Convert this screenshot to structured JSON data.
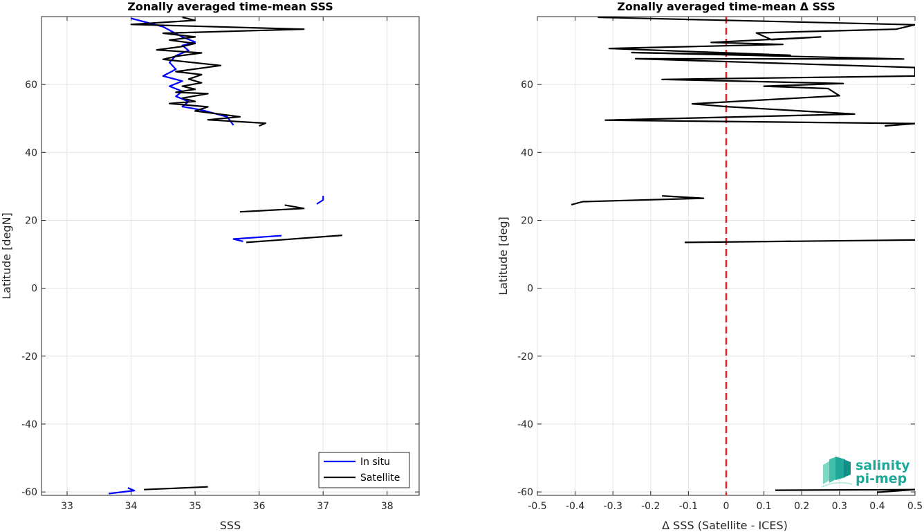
{
  "chart_data": [
    {
      "type": "line",
      "title": "Zonally averaged time-mean SSS",
      "xlabel": "SSS",
      "ylabel": "Latitude [degN]",
      "xlim": [
        32.6,
        38.5
      ],
      "ylim": [
        -61,
        80
      ],
      "xticks": [
        33,
        34,
        35,
        36,
        37,
        38
      ],
      "yticks": [
        -60,
        -40,
        -20,
        0,
        20,
        40,
        60
      ],
      "grid": true,
      "legend_position": "bottom-right",
      "series": [
        {
          "name": "In situ",
          "color": "#0000ff",
          "segments": [
            [
              [
                34.0,
                79.5
              ],
              [
                34.5,
                77.0
              ],
              [
                34.8,
                74.0
              ],
              [
                35.0,
                72.5
              ],
              [
                34.8,
                71.5
              ],
              [
                34.9,
                70.0
              ],
              [
                34.7,
                68.5
              ],
              [
                34.6,
                66.5
              ],
              [
                34.7,
                64.5
              ],
              [
                34.5,
                62.5
              ],
              [
                34.8,
                61.0
              ],
              [
                34.6,
                59.5
              ],
              [
                34.8,
                58.0
              ],
              [
                34.7,
                56.5
              ],
              [
                34.9,
                55.0
              ],
              [
                34.8,
                53.5
              ],
              [
                35.1,
                52.5
              ],
              [
                35.5,
                50.5
              ],
              [
                35.6,
                48.0
              ]
            ],
            [
              [
                36.9,
                24.8
              ],
              [
                37.0,
                26.0
              ],
              [
                37.0,
                27.2
              ]
            ],
            [
              [
                36.35,
                15.5
              ],
              [
                35.6,
                14.5
              ],
              [
                35.75,
                13.8
              ]
            ],
            [
              [
                33.65,
                -60.5
              ],
              [
                34.05,
                -59.6
              ],
              [
                33.95,
                -58.8
              ]
            ]
          ]
        },
        {
          "name": "Satellite",
          "color": "#000000",
          "segments": [
            [
              [
                34.8,
                79.8
              ],
              [
                35.0,
                78.9
              ],
              [
                34.0,
                77.7
              ],
              [
                36.7,
                76.3
              ],
              [
                34.5,
                75.1
              ],
              [
                35.0,
                74.0
              ],
              [
                34.6,
                73.1
              ],
              [
                35.0,
                72.1
              ],
              [
                34.8,
                71.2
              ],
              [
                34.4,
                70.2
              ],
              [
                35.1,
                69.3
              ],
              [
                34.7,
                68.3
              ],
              [
                34.5,
                67.4
              ],
              [
                35.4,
                65.6
              ],
              [
                34.7,
                63.8
              ],
              [
                35.1,
                62.9
              ],
              [
                34.9,
                61.6
              ],
              [
                35.1,
                60.5
              ],
              [
                34.8,
                59.5
              ],
              [
                35.0,
                58.6
              ],
              [
                34.7,
                57.7
              ],
              [
                35.2,
                57.3
              ],
              [
                34.8,
                56.0
              ],
              [
                35.0,
                55.0
              ],
              [
                34.6,
                54.4
              ],
              [
                35.2,
                53.4
              ],
              [
                35.0,
                52.2
              ],
              [
                35.7,
                50.5
              ],
              [
                35.2,
                49.6
              ],
              [
                36.1,
                48.6
              ],
              [
                36.0,
                47.8
              ]
            ],
            [
              [
                35.7,
                22.5
              ],
              [
                36.7,
                23.5
              ],
              [
                36.4,
                24.5
              ]
            ],
            [
              [
                37.3,
                15.6
              ],
              [
                35.8,
                13.5
              ]
            ],
            [
              [
                35.2,
                -58.5
              ],
              [
                34.2,
                -59.3
              ]
            ]
          ]
        }
      ]
    },
    {
      "type": "line",
      "title": "Zonally averaged time-mean Δ SSS",
      "xlabel": "Δ SSS (Satellite - ICES)",
      "ylabel": "Latitude [deg]",
      "xlim": [
        -0.5,
        0.5
      ],
      "ylim": [
        -61,
        80
      ],
      "xticks": [
        -0.5,
        -0.4,
        -0.3,
        -0.2,
        -0.1,
        0,
        0.1,
        0.2,
        0.3,
        0.4,
        0.5
      ],
      "xtick_labels": [
        "-0.5",
        "-0.4",
        "-0.3",
        "-0.2",
        "-0.1",
        "0",
        "0.1",
        "0.2",
        "0.3",
        "0.4",
        "0.5"
      ],
      "yticks": [
        -60,
        -40,
        -20,
        0,
        20,
        40,
        60
      ],
      "grid": true,
      "reference_line": {
        "x": 0,
        "color": "#e62020",
        "style": "dashed"
      },
      "series": [
        {
          "color": "#000000",
          "segments": [
            [
              [
                -0.34,
                79.8
              ],
              [
                0.5,
                77.6
              ],
              [
                0.45,
                76.3
              ],
              [
                0.08,
                75.2
              ],
              [
                0.12,
                73.2
              ],
              [
                0.25,
                74.0
              ],
              [
                -0.04,
                72.4
              ],
              [
                0.15,
                71.8
              ],
              [
                -0.31,
                70.6
              ],
              [
                0.17,
                68.6
              ],
              [
                -0.25,
                69.4
              ],
              [
                0.47,
                67.5
              ],
              [
                -0.24,
                67.6
              ],
              [
                0.5,
                65.0
              ],
              [
                0.5,
                62.5
              ],
              [
                -0.17,
                61.5
              ],
              [
                0.31,
                60.3
              ],
              [
                0.1,
                59.5
              ],
              [
                0.27,
                58.8
              ],
              [
                0.3,
                56.7
              ],
              [
                -0.09,
                54.3
              ],
              [
                0.0,
                53.5
              ],
              [
                0.34,
                51.3
              ],
              [
                -0.32,
                49.5
              ],
              [
                0.5,
                48.5
              ],
              [
                0.42,
                47.8
              ]
            ],
            [
              [
                -0.17,
                27.2
              ],
              [
                -0.06,
                26.5
              ],
              [
                -0.38,
                25.5
              ],
              [
                -0.41,
                24.6
              ]
            ],
            [
              [
                -0.11,
                13.5
              ],
              [
                0.5,
                14.2
              ]
            ],
            [
              [
                0.13,
                -59.5
              ],
              [
                0.5,
                -59.3
              ],
              [
                0.4,
                -60.1
              ]
            ]
          ]
        }
      ]
    }
  ],
  "logo": {
    "text_top": "salinity",
    "text_bottom": "pi-mep"
  }
}
